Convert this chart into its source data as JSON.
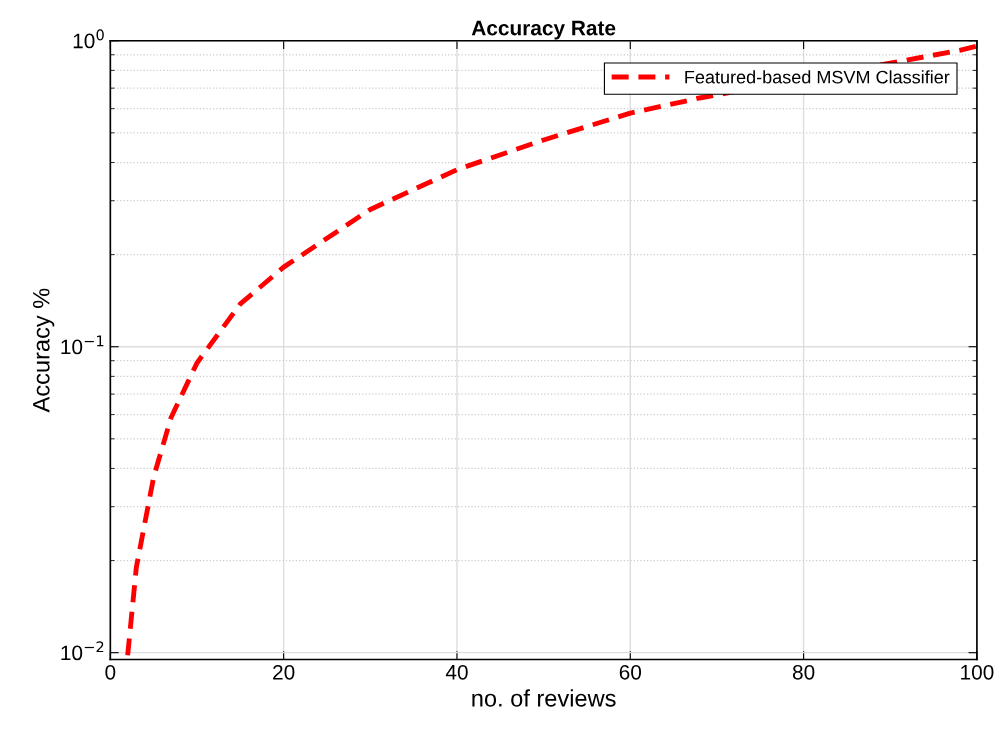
{
  "chart_data": {
    "type": "line",
    "title": "Accuracy Rate",
    "xlabel": "no. of reviews",
    "ylabel": "Accuracy %",
    "x": [
      2,
      3,
      5,
      7,
      10,
      15,
      20,
      30,
      40,
      50,
      60,
      68,
      98,
      100
    ],
    "series": [
      {
        "name": "Featured-based MSVM Classifier",
        "color": "#ff0000",
        "values": [
          0.0098,
          0.019,
          0.0375,
          0.0586,
          0.0885,
          0.138,
          0.182,
          0.281,
          0.379,
          0.474,
          0.58,
          0.65,
          0.93,
          0.96
        ]
      }
    ],
    "xlim": [
      0,
      100
    ],
    "xticks": [
      0,
      20,
      40,
      60,
      80,
      100
    ],
    "ylim": [
      0.0095,
      1
    ],
    "yticks": [
      {
        "value": 0.01,
        "label": "10$^{−2}$"
      },
      {
        "value": 0.1,
        "label": "10$^{−1}$"
      },
      {
        "value": 1,
        "label": "10$^{0}$"
      }
    ],
    "log": "y",
    "grid": true,
    "legend": "top right",
    "line_style": "dashed",
    "marker": "none"
  }
}
